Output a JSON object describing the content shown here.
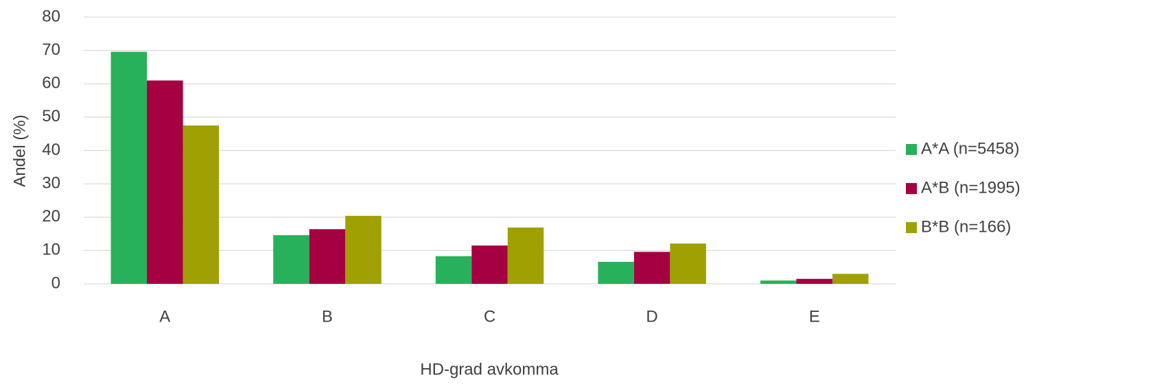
{
  "chart_data": {
    "type": "bar",
    "x_label": "HD-grad avkomma",
    "y_label": "Andel (%)",
    "categories": [
      "A",
      "B",
      "C",
      "D",
      "E"
    ],
    "series": [
      {
        "name": "A*A (n=5458)",
        "color": "#27b15b",
        "values": [
          69.6,
          14.6,
          8.3,
          6.6,
          1.0
        ]
      },
      {
        "name": "A*B (n=1995)",
        "color": "#a50041",
        "values": [
          61.0,
          16.4,
          11.5,
          9.6,
          1.5
        ]
      },
      {
        "name": "B*B (n=166)",
        "color": "#9fa002",
        "values": [
          47.5,
          20.4,
          16.9,
          12.1,
          3.0
        ]
      }
    ],
    "ylim": [
      0,
      80
    ],
    "yticks": [
      0,
      10,
      20,
      30,
      40,
      50,
      60,
      70,
      80
    ],
    "grid": true,
    "legend": "right"
  }
}
